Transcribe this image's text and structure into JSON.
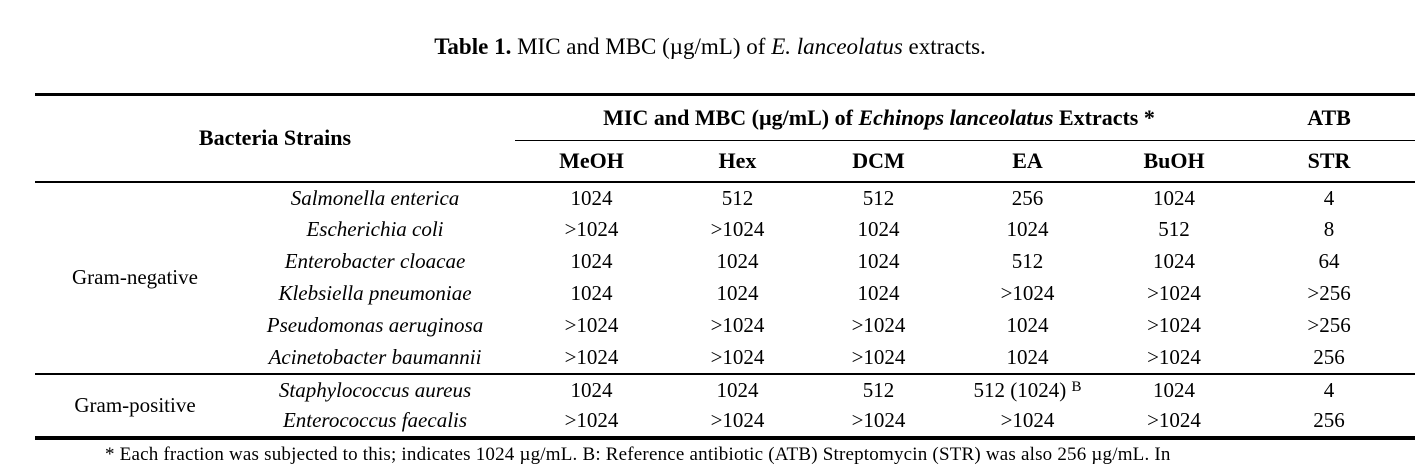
{
  "title": {
    "label": "Table 1.",
    "pre": " MIC and MBC (µg/mL) of ",
    "species": "E. lanceolatus",
    "post": " extracts."
  },
  "table": {
    "header": {
      "bacteria_strains": "Bacteria Strains",
      "extracts_pre": "MIC and MBC (µg/mL) of ",
      "extracts_italic": "Echinops lanceolatus",
      "extracts_post": " Extracts *",
      "atb": "ATB",
      "subheaders": [
        "MeOH",
        "Hex",
        "DCM",
        "EA",
        "BuOH",
        "STR"
      ]
    },
    "groups": [
      {
        "name": "Gram-negative",
        "rows": [
          {
            "species": "Salmonella enterica",
            "values": [
              "1024",
              "512",
              "512",
              "256",
              "1024",
              "4"
            ]
          },
          {
            "species": "Escherichia coli",
            "values": [
              ">1024",
              ">1024",
              "1024",
              "1024",
              "512",
              "8"
            ]
          },
          {
            "species": "Enterobacter cloacae",
            "values": [
              "1024",
              "1024",
              "1024",
              "512",
              "1024",
              "64"
            ]
          },
          {
            "species": "Klebsiella pneumoniae",
            "values": [
              "1024",
              "1024",
              "1024",
              ">1024",
              ">1024",
              ">256"
            ]
          },
          {
            "species": "Pseudomonas aeruginosa",
            "values": [
              ">1024",
              ">1024",
              ">1024",
              "1024",
              ">1024",
              ">256"
            ]
          },
          {
            "species": "Acinetobacter baumannii",
            "values": [
              ">1024",
              ">1024",
              ">1024",
              "1024",
              ">1024",
              "256"
            ]
          }
        ]
      },
      {
        "name": "Gram-positive",
        "rows": [
          {
            "species": "Staphylococcus aureus",
            "values": [
              "1024",
              "1024",
              "512",
              "512 (1024) ^B",
              "1024",
              "4"
            ]
          },
          {
            "species": "Enterococcus faecalis",
            "values": [
              ">1024",
              ">1024",
              ">1024",
              ">1024",
              ">1024",
              "256"
            ]
          }
        ]
      }
    ],
    "footnote": "* Each fraction was subjected to this; indicates 1024 µg/mL. B: Reference antibiotic (ATB) Streptomycin (STR) was also 256 µg/mL. In"
  }
}
